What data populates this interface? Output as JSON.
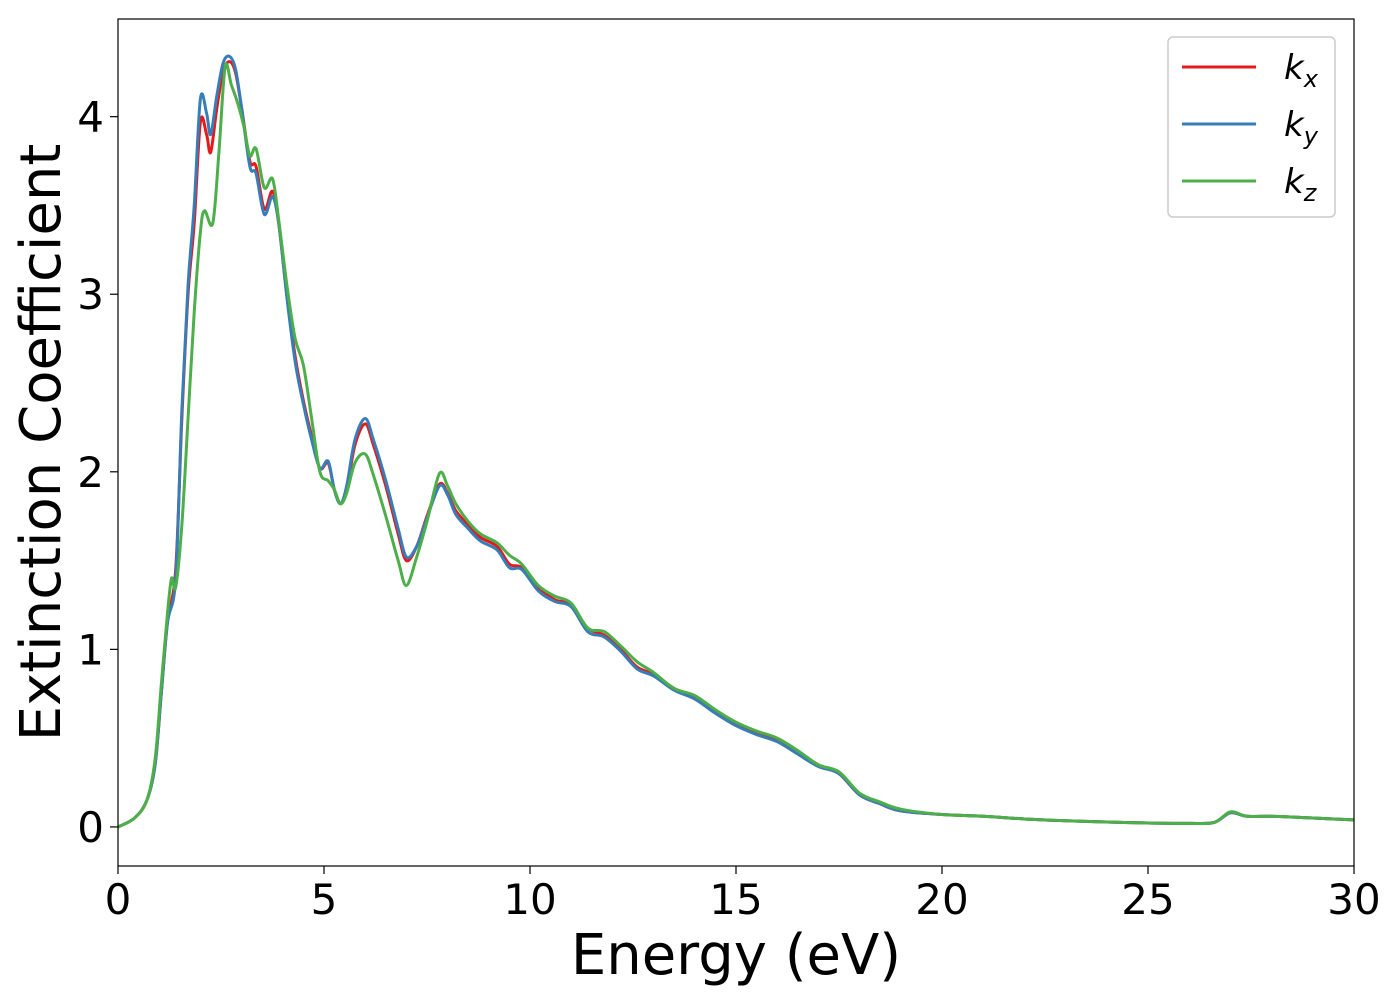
{
  "chart_data": {
    "type": "line",
    "xlabel": "Energy (eV)",
    "ylabel": "Extinction Coefficient",
    "xlim": [
      0,
      30
    ],
    "ylim": [
      -0.22,
      4.55
    ],
    "xticks": [
      0,
      5,
      10,
      15,
      20,
      25,
      30
    ],
    "yticks": [
      0,
      1,
      2,
      3,
      4
    ],
    "grid": false,
    "legend_position": "top-right",
    "colors": {
      "kx": "#e41a1c",
      "ky": "#377eb8",
      "kz": "#4daf4a"
    },
    "series": [
      {
        "name": "k",
        "sub": "x",
        "color": "#e41a1c",
        "points": [
          [
            0,
            0
          ],
          [
            0.4,
            0.05
          ],
          [
            0.7,
            0.15
          ],
          [
            0.9,
            0.35
          ],
          [
            1.05,
            0.75
          ],
          [
            1.2,
            1.15
          ],
          [
            1.4,
            1.45
          ],
          [
            1.55,
            2.3
          ],
          [
            1.7,
            3.0
          ],
          [
            1.85,
            3.4
          ],
          [
            2.0,
            3.97
          ],
          [
            2.15,
            3.9
          ],
          [
            2.25,
            3.8
          ],
          [
            2.4,
            4.05
          ],
          [
            2.55,
            4.25
          ],
          [
            2.7,
            4.31
          ],
          [
            2.85,
            4.25
          ],
          [
            3.0,
            4.05
          ],
          [
            3.2,
            3.75
          ],
          [
            3.35,
            3.72
          ],
          [
            3.55,
            3.48
          ],
          [
            3.75,
            3.58
          ],
          [
            3.9,
            3.4
          ],
          [
            4.1,
            3.0
          ],
          [
            4.3,
            2.65
          ],
          [
            4.5,
            2.4
          ],
          [
            4.7,
            2.2
          ],
          [
            4.9,
            2.02
          ],
          [
            5.1,
            2.05
          ],
          [
            5.25,
            1.9
          ],
          [
            5.4,
            1.82
          ],
          [
            5.55,
            1.9
          ],
          [
            5.75,
            2.15
          ],
          [
            6.0,
            2.27
          ],
          [
            6.2,
            2.15
          ],
          [
            6.5,
            1.92
          ],
          [
            6.8,
            1.65
          ],
          [
            7.0,
            1.5
          ],
          [
            7.25,
            1.58
          ],
          [
            7.5,
            1.75
          ],
          [
            7.8,
            1.93
          ],
          [
            8.0,
            1.88
          ],
          [
            8.2,
            1.78
          ],
          [
            8.5,
            1.7
          ],
          [
            8.8,
            1.63
          ],
          [
            9.2,
            1.58
          ],
          [
            9.5,
            1.48
          ],
          [
            9.8,
            1.46
          ],
          [
            10.2,
            1.35
          ],
          [
            10.6,
            1.28
          ],
          [
            11.0,
            1.25
          ],
          [
            11.4,
            1.12
          ],
          [
            11.8,
            1.08
          ],
          [
            12.2,
            1.0
          ],
          [
            12.6,
            0.9
          ],
          [
            13.0,
            0.86
          ],
          [
            13.5,
            0.78
          ],
          [
            14.0,
            0.73
          ],
          [
            14.5,
            0.65
          ],
          [
            15.0,
            0.58
          ],
          [
            15.5,
            0.53
          ],
          [
            16.0,
            0.49
          ],
          [
            16.5,
            0.42
          ],
          [
            17.0,
            0.35
          ],
          [
            17.5,
            0.3
          ],
          [
            18.0,
            0.18
          ],
          [
            18.5,
            0.13
          ],
          [
            19.0,
            0.09
          ],
          [
            20.0,
            0.07
          ],
          [
            21.0,
            0.06
          ],
          [
            22.0,
            0.045
          ],
          [
            23.0,
            0.035
          ],
          [
            24.0,
            0.028
          ],
          [
            25.0,
            0.022
          ],
          [
            26.0,
            0.02
          ],
          [
            26.6,
            0.025
          ],
          [
            27.0,
            0.08
          ],
          [
            27.4,
            0.06
          ],
          [
            28.0,
            0.06
          ],
          [
            29.0,
            0.05
          ],
          [
            30.0,
            0.04
          ]
        ]
      },
      {
        "name": "k",
        "sub": "y",
        "color": "#377eb8",
        "points": [
          [
            0,
            0
          ],
          [
            0.4,
            0.05
          ],
          [
            0.7,
            0.15
          ],
          [
            0.9,
            0.35
          ],
          [
            1.05,
            0.75
          ],
          [
            1.2,
            1.15
          ],
          [
            1.4,
            1.4
          ],
          [
            1.55,
            2.35
          ],
          [
            1.7,
            3.05
          ],
          [
            1.85,
            3.5
          ],
          [
            2.0,
            4.1
          ],
          [
            2.15,
            4.02
          ],
          [
            2.25,
            3.9
          ],
          [
            2.4,
            4.12
          ],
          [
            2.55,
            4.3
          ],
          [
            2.7,
            4.34
          ],
          [
            2.85,
            4.27
          ],
          [
            3.0,
            4.05
          ],
          [
            3.2,
            3.72
          ],
          [
            3.35,
            3.68
          ],
          [
            3.55,
            3.45
          ],
          [
            3.75,
            3.55
          ],
          [
            3.9,
            3.4
          ],
          [
            4.1,
            2.98
          ],
          [
            4.3,
            2.62
          ],
          [
            4.5,
            2.38
          ],
          [
            4.7,
            2.18
          ],
          [
            4.9,
            2.02
          ],
          [
            5.1,
            2.06
          ],
          [
            5.25,
            1.9
          ],
          [
            5.4,
            1.82
          ],
          [
            5.55,
            1.92
          ],
          [
            5.75,
            2.18
          ],
          [
            6.0,
            2.3
          ],
          [
            6.2,
            2.18
          ],
          [
            6.5,
            1.95
          ],
          [
            6.8,
            1.68
          ],
          [
            7.0,
            1.52
          ],
          [
            7.25,
            1.58
          ],
          [
            7.5,
            1.74
          ],
          [
            7.8,
            1.92
          ],
          [
            8.0,
            1.87
          ],
          [
            8.2,
            1.76
          ],
          [
            8.5,
            1.68
          ],
          [
            8.8,
            1.61
          ],
          [
            9.2,
            1.56
          ],
          [
            9.5,
            1.46
          ],
          [
            9.8,
            1.45
          ],
          [
            10.2,
            1.33
          ],
          [
            10.6,
            1.27
          ],
          [
            11.0,
            1.24
          ],
          [
            11.4,
            1.1
          ],
          [
            11.8,
            1.07
          ],
          [
            12.2,
            0.99
          ],
          [
            12.6,
            0.89
          ],
          [
            13.0,
            0.85
          ],
          [
            13.5,
            0.77
          ],
          [
            14.0,
            0.72
          ],
          [
            14.5,
            0.64
          ],
          [
            15.0,
            0.57
          ],
          [
            15.5,
            0.52
          ],
          [
            16.0,
            0.48
          ],
          [
            16.5,
            0.41
          ],
          [
            17.0,
            0.34
          ],
          [
            17.5,
            0.3
          ],
          [
            18.0,
            0.18
          ],
          [
            18.5,
            0.13
          ],
          [
            19.0,
            0.09
          ],
          [
            20.0,
            0.07
          ],
          [
            21.0,
            0.06
          ],
          [
            22.0,
            0.045
          ],
          [
            23.0,
            0.035
          ],
          [
            24.0,
            0.028
          ],
          [
            25.0,
            0.022
          ],
          [
            26.0,
            0.02
          ],
          [
            26.6,
            0.025
          ],
          [
            27.0,
            0.08
          ],
          [
            27.4,
            0.06
          ],
          [
            28.0,
            0.06
          ],
          [
            29.0,
            0.05
          ],
          [
            30.0,
            0.04
          ]
        ]
      },
      {
        "name": "k",
        "sub": "z",
        "color": "#4daf4a",
        "points": [
          [
            0,
            0
          ],
          [
            0.4,
            0.05
          ],
          [
            0.7,
            0.15
          ],
          [
            0.9,
            0.38
          ],
          [
            1.05,
            0.8
          ],
          [
            1.2,
            1.2
          ],
          [
            1.3,
            1.4
          ],
          [
            1.4,
            1.35
          ],
          [
            1.55,
            1.7
          ],
          [
            1.7,
            2.3
          ],
          [
            1.85,
            2.9
          ],
          [
            2.0,
            3.35
          ],
          [
            2.1,
            3.47
          ],
          [
            2.3,
            3.4
          ],
          [
            2.45,
            3.8
          ],
          [
            2.6,
            4.28
          ],
          [
            2.75,
            4.18
          ],
          [
            2.9,
            4.08
          ],
          [
            3.05,
            3.95
          ],
          [
            3.2,
            3.78
          ],
          [
            3.35,
            3.82
          ],
          [
            3.55,
            3.6
          ],
          [
            3.75,
            3.65
          ],
          [
            3.9,
            3.42
          ],
          [
            4.1,
            3.05
          ],
          [
            4.3,
            2.75
          ],
          [
            4.5,
            2.6
          ],
          [
            4.7,
            2.3
          ],
          [
            4.9,
            2.0
          ],
          [
            5.1,
            1.95
          ],
          [
            5.25,
            1.9
          ],
          [
            5.4,
            1.82
          ],
          [
            5.55,
            1.88
          ],
          [
            5.75,
            2.05
          ],
          [
            6.0,
            2.1
          ],
          [
            6.2,
            1.98
          ],
          [
            6.5,
            1.75
          ],
          [
            6.8,
            1.5
          ],
          [
            7.0,
            1.36
          ],
          [
            7.25,
            1.52
          ],
          [
            7.5,
            1.72
          ],
          [
            7.8,
            1.99
          ],
          [
            8.0,
            1.92
          ],
          [
            8.2,
            1.82
          ],
          [
            8.5,
            1.72
          ],
          [
            8.8,
            1.65
          ],
          [
            9.2,
            1.6
          ],
          [
            9.5,
            1.53
          ],
          [
            9.8,
            1.48
          ],
          [
            10.2,
            1.36
          ],
          [
            10.6,
            1.3
          ],
          [
            11.0,
            1.26
          ],
          [
            11.4,
            1.12
          ],
          [
            11.8,
            1.1
          ],
          [
            12.2,
            1.02
          ],
          [
            12.6,
            0.93
          ],
          [
            13.0,
            0.87
          ],
          [
            13.5,
            0.78
          ],
          [
            14.0,
            0.74
          ],
          [
            14.5,
            0.66
          ],
          [
            15.0,
            0.59
          ],
          [
            15.5,
            0.54
          ],
          [
            16.0,
            0.5
          ],
          [
            16.5,
            0.43
          ],
          [
            17.0,
            0.35
          ],
          [
            17.5,
            0.31
          ],
          [
            18.0,
            0.19
          ],
          [
            18.5,
            0.14
          ],
          [
            19.0,
            0.1
          ],
          [
            20.0,
            0.07
          ],
          [
            21.0,
            0.06
          ],
          [
            22.0,
            0.045
          ],
          [
            23.0,
            0.035
          ],
          [
            24.0,
            0.028
          ],
          [
            25.0,
            0.022
          ],
          [
            26.0,
            0.02
          ],
          [
            26.6,
            0.025
          ],
          [
            27.0,
            0.085
          ],
          [
            27.4,
            0.06
          ],
          [
            28.0,
            0.06
          ],
          [
            29.0,
            0.05
          ],
          [
            30.0,
            0.04
          ]
        ]
      }
    ]
  }
}
